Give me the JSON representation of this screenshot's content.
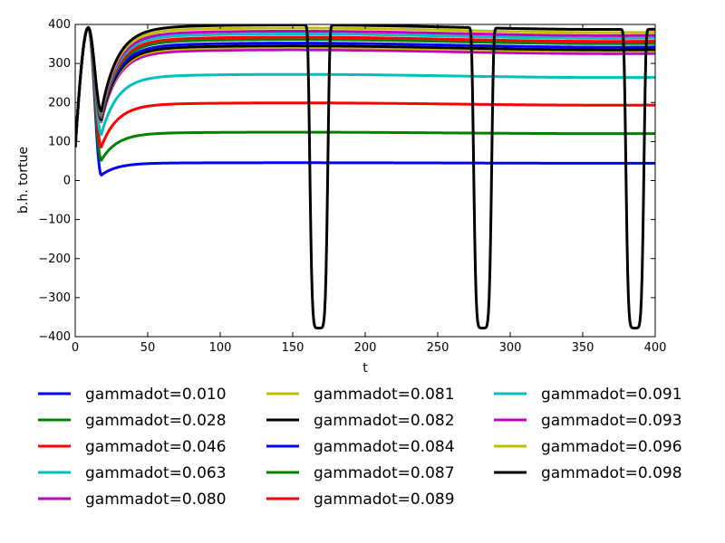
{
  "chart_data": {
    "type": "line",
    "title": "",
    "xlabel": "t",
    "ylabel": "b.h. tortue",
    "xlim": [
      0,
      400
    ],
    "ylim": [
      -400,
      400
    ],
    "xticks": [
      "0",
      "50",
      "100",
      "150",
      "200",
      "250",
      "300",
      "350",
      "400"
    ],
    "yticks": [
      "−400",
      "−300",
      "−200",
      "−100",
      "0",
      "100",
      "200",
      "300",
      "400"
    ],
    "xtick_values": [
      0,
      50,
      100,
      150,
      200,
      250,
      300,
      350,
      400
    ],
    "ytick_values": [
      -400,
      -300,
      -200,
      -100,
      0,
      100,
      200,
      300,
      400
    ],
    "grid": false,
    "legend_position": "below-plot",
    "series": [
      {
        "name": "gammadot=0.010",
        "color": "#0000ff",
        "plateau": 45,
        "dip": 14,
        "periodic": false
      },
      {
        "name": "gammadot=0.028",
        "color": "#008000",
        "plateau": 122,
        "dip": 52,
        "periodic": false
      },
      {
        "name": "gammadot=0.046",
        "color": "#ff0000",
        "plateau": 196,
        "dip": 86,
        "periodic": false
      },
      {
        "name": "gammadot=0.063",
        "color": "#00bfbf",
        "plateau": 268,
        "dip": 118,
        "periodic": false
      },
      {
        "name": "gammadot=0.080",
        "color": "#bf00bf",
        "plateau": 330,
        "dip": 150,
        "periodic": false
      },
      {
        "name": "gammadot=0.081",
        "color": "#bfbf00",
        "plateau": 336,
        "dip": 152,
        "periodic": false
      },
      {
        "name": "gammadot=0.082",
        "color": "#000000",
        "plateau": 340,
        "dip": 155,
        "periodic": false
      },
      {
        "name": "gammadot=0.084",
        "color": "#0000ff",
        "plateau": 347,
        "dip": 158,
        "periodic": false
      },
      {
        "name": "gammadot=0.087",
        "color": "#008000",
        "plateau": 356,
        "dip": 162,
        "periodic": false
      },
      {
        "name": "gammadot=0.089",
        "color": "#ff0000",
        "plateau": 362,
        "dip": 165,
        "periodic": false
      },
      {
        "name": "gammadot=0.091",
        "color": "#00bfbf",
        "plateau": 370,
        "dip": 168,
        "periodic": false
      },
      {
        "name": "gammadot=0.093",
        "color": "#bf00bf",
        "plateau": 377,
        "dip": 171,
        "periodic": false
      },
      {
        "name": "gammadot=0.096",
        "color": "#bfbf00",
        "plateau": 385,
        "dip": 174,
        "periodic": false
      },
      {
        "name": "gammadot=0.098",
        "color": "#000000",
        "plateau": 393,
        "dip": 177,
        "periodic": true,
        "spike_centers": [
          168,
          281,
          386
        ],
        "spike_min": -378
      }
    ]
  }
}
